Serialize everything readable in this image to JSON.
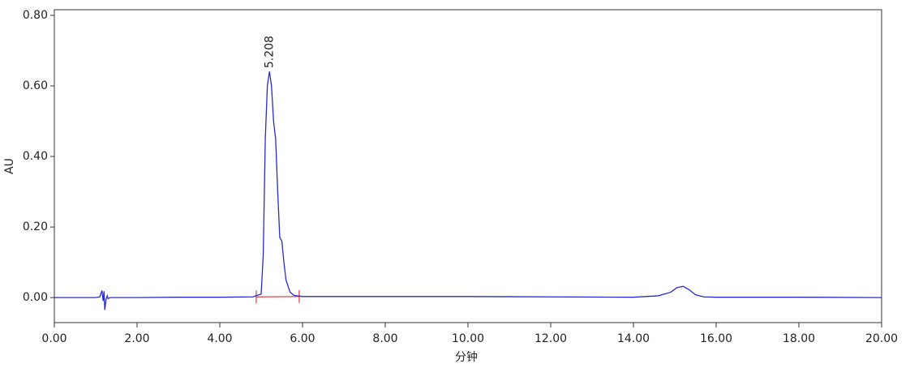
{
  "chart_data": {
    "type": "line",
    "x_label": "分钟",
    "y_label": "AU",
    "xlim": [
      0,
      20
    ],
    "ylim": [
      -0.071,
      0.816
    ],
    "xticks": [
      {
        "value": 0,
        "label": "0.00"
      },
      {
        "value": 2,
        "label": "2.00"
      },
      {
        "value": 4,
        "label": "4.00"
      },
      {
        "value": 6,
        "label": "6.00"
      },
      {
        "value": 8,
        "label": "8.00"
      },
      {
        "value": 10,
        "label": "10.00"
      },
      {
        "value": 12,
        "label": "12.00"
      },
      {
        "value": 14,
        "label": "14.00"
      },
      {
        "value": 16,
        "label": "16.00"
      },
      {
        "value": 18,
        "label": "18.00"
      },
      {
        "value": 20,
        "label": "20.00"
      }
    ],
    "yticks": [
      {
        "value": 0,
        "label": "0.00"
      },
      {
        "value": 0.2,
        "label": "0.20"
      },
      {
        "value": 0.4,
        "label": "0.40"
      },
      {
        "value": 0.6,
        "label": "0.60"
      },
      {
        "value": 0.8,
        "label": "0.80"
      }
    ],
    "x": [
      0,
      1.0,
      1.1,
      1.15,
      1.18,
      1.2,
      1.22,
      1.25,
      1.28,
      1.3,
      1.35,
      1.45,
      2,
      3,
      4,
      4.8,
      5.0,
      5.05,
      5.1,
      5.15,
      5.2,
      5.25,
      5.3,
      5.35,
      5.4,
      5.45,
      5.5,
      5.55,
      5.6,
      5.7,
      5.8,
      6.0,
      7,
      8,
      10,
      12,
      14,
      14.6,
      14.9,
      15.05,
      15.2,
      15.35,
      15.5,
      15.7,
      16,
      18,
      20
    ],
    "series": [
      {
        "color": "#2a2ad0",
        "values": [
          0,
          0,
          0.002,
          0.02,
          -0.01,
          0.018,
          -0.035,
          -0.005,
          0.005,
          -0.003,
          0,
          0,
          0,
          0.001,
          0.001,
          0.002,
          0.01,
          0.12,
          0.45,
          0.6,
          0.641,
          0.6,
          0.5,
          0.45,
          0.3,
          0.17,
          0.16,
          0.1,
          0.05,
          0.015,
          0.006,
          0.003,
          0.003,
          0.003,
          0.003,
          0.002,
          0.001,
          0.005,
          0.015,
          0.028,
          0.032,
          0.022,
          0.008,
          0.002,
          0.001,
          0.001,
          0
        ]
      }
    ],
    "peak_label": {
      "text": "5.208",
      "x": 5.208,
      "y": 0.641
    },
    "integration": {
      "start": 4.88,
      "end": 5.92,
      "start_value": 0.002,
      "end_value": 0.003,
      "color": "#e8393c"
    }
  }
}
